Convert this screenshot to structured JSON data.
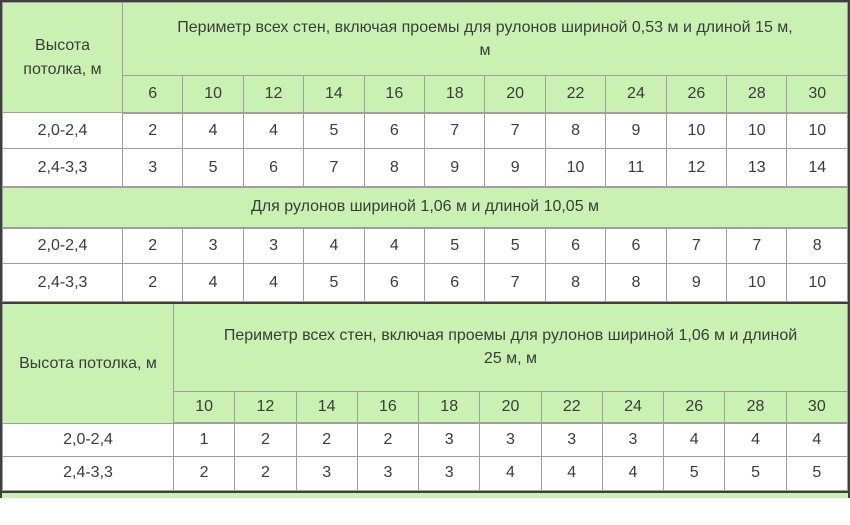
{
  "colors": {
    "header_bg": "#c9f2b2",
    "grid_line": "#9f9f9f",
    "frame_line": "#3f3f3f",
    "text": "#3b3b3b",
    "row_bg": "#ffffff"
  },
  "table": {
    "sections": [
      {
        "type": "matrix",
        "corner_lines": [
          "Высота",
          "потолка, м"
        ],
        "header_lines": [
          "Периметр всех стен, включая проемы для рулонов шириной 0,53 м и длиной 15 м,",
          "м"
        ],
        "columns": [
          "6",
          "10",
          "12",
          "14",
          "16",
          "18",
          "20",
          "22",
          "24",
          "26",
          "28",
          "30"
        ],
        "rows": [
          {
            "label": "2,0-2,4",
            "values": [
              "2",
              "4",
              "4",
              "5",
              "6",
              "7",
              "7",
              "8",
              "9",
              "10",
              "10",
              "10"
            ]
          },
          {
            "label": "2,4-3,3",
            "values": [
              "3",
              "5",
              "6",
              "7",
              "8",
              "9",
              "9",
              "10",
              "11",
              "12",
              "13",
              "14"
            ]
          }
        ]
      },
      {
        "type": "band",
        "header": "Для рулонов шириной 1,06 м и длиной 10,05 м",
        "rows": [
          {
            "label": "2,0-2,4",
            "values": [
              "2",
              "3",
              "3",
              "4",
              "4",
              "5",
              "5",
              "6",
              "6",
              "7",
              "7",
              "8"
            ]
          },
          {
            "label": "2,4-3,3",
            "values": [
              "2",
              "4",
              "4",
              "5",
              "6",
              "6",
              "7",
              "8",
              "8",
              "9",
              "10",
              "10"
            ]
          }
        ]
      },
      {
        "type": "matrix",
        "corner_lines": [
          "Высота потолка, м"
        ],
        "header_lines": [
          "Периметр всех стен, включая проемы для рулонов шириной 1,06 м и длиной",
          "25 м, м"
        ],
        "columns": [
          "10",
          "12",
          "14",
          "16",
          "18",
          "20",
          "22",
          "24",
          "26",
          "28",
          "30"
        ],
        "rows": [
          {
            "label": "2,0-2,4",
            "values": [
              "1",
              "2",
              "2",
              "2",
              "3",
              "3",
              "3",
              "3",
              "4",
              "4",
              "4"
            ]
          },
          {
            "label": "2,4-3,3",
            "values": [
              "2",
              "2",
              "3",
              "3",
              "3",
              "4",
              "4",
              "4",
              "5",
              "5",
              "5"
            ]
          }
        ]
      }
    ]
  }
}
